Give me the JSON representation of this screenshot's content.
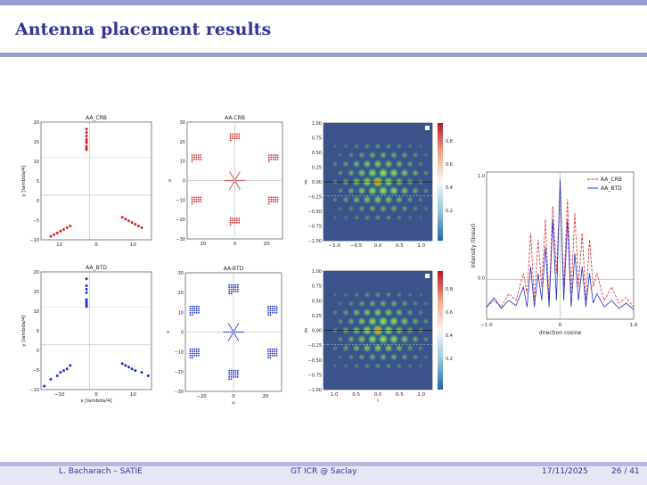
{
  "slide": {
    "title": "Antenna placement results"
  },
  "footer": {
    "author": "L. Bacharach – SATIE",
    "event": "GT ICR @ Saclay",
    "date": "17/11/2025",
    "page": "26 / 41"
  },
  "colors": {
    "accent": "#33339a",
    "crb": "#d62728",
    "btd": "#1f33c8"
  },
  "chart_data": [
    {
      "type": "scatter",
      "title": "AA_CRB",
      "ylabel": "y [lambda/4]",
      "xticks": [
        "10",
        "0",
        "10"
      ],
      "yticks": [
        "20",
        "15",
        "10",
        "5",
        "0",
        "−5",
        "−10"
      ],
      "series": [
        {
          "name": "AA_CRB",
          "x": [
            -1,
            -1,
            -1,
            -1,
            -1,
            -1,
            -1,
            -1,
            -1,
            -12,
            -11,
            -10,
            -9,
            -8,
            -7,
            -6,
            10,
            11,
            12,
            13,
            14,
            15,
            16
          ],
          "y": [
            20,
            19,
            18,
            17,
            16.5,
            16,
            15,
            14.5,
            14,
            -11,
            -10.5,
            -10,
            -9.5,
            -9,
            -8.5,
            -8,
            -5.5,
            -6,
            -6.5,
            -7,
            -7.5,
            -8,
            -8.5
          ]
        }
      ]
    },
    {
      "type": "scatter",
      "title": "AA-CRB",
      "ylabel": "v",
      "xticks": [
        "20",
        "0",
        "20"
      ],
      "yticks": [
        "30",
        "20",
        "10",
        "0",
        "−10",
        "−20",
        "−30"
      ]
    },
    {
      "type": "heatmap",
      "xlabel": "",
      "ylabel": "m",
      "xticks": [
        "−1.0",
        "−0.5",
        "0.0",
        "0.5",
        "1.0"
      ],
      "yticks": [
        "1.00",
        "0.75",
        "0.50",
        "0.25",
        "0.00",
        "−0.25",
        "−0.50",
        "−0.75",
        "−1.00"
      ],
      "colorbar_ticks": [
        "0.8",
        "0.6",
        "0.4",
        "0.2"
      ]
    },
    {
      "type": "line",
      "xlabel": "direction cosine",
      "ylabel": "intensity (linear)",
      "xticks": [
        "−1.0",
        "0",
        "1.0"
      ],
      "yticks": [
        "1.0",
        "0.0"
      ],
      "series": [
        {
          "name": "AA_CRB",
          "x": [
            -1.0,
            -0.9,
            -0.8,
            -0.7,
            -0.6,
            -0.5,
            -0.45,
            -0.4,
            -0.35,
            -0.3,
            -0.25,
            -0.2,
            -0.15,
            -0.1,
            -0.05,
            0.0,
            0.05,
            0.1,
            0.15,
            0.2,
            0.25,
            0.3,
            0.35,
            0.4,
            0.45,
            0.5,
            0.6,
            0.7,
            0.8,
            0.9,
            1.0
          ],
          "y": [
            0.05,
            0.1,
            0.05,
            0.15,
            0.1,
            0.3,
            0.15,
            0.6,
            0.1,
            0.55,
            0.2,
            0.7,
            0.1,
            0.8,
            0.3,
            0.95,
            0.2,
            0.85,
            0.15,
            0.75,
            0.2,
            0.6,
            0.1,
            0.55,
            0.2,
            0.3,
            0.1,
            0.2,
            0.08,
            0.12,
            0.05
          ]
        },
        {
          "name": "AA_BTD",
          "x": [
            -1.0,
            -0.9,
            -0.8,
            -0.7,
            -0.6,
            -0.5,
            -0.45,
            -0.4,
            -0.35,
            -0.3,
            -0.25,
            -0.2,
            -0.15,
            -0.1,
            -0.05,
            0.0,
            0.05,
            0.1,
            0.15,
            0.2,
            0.25,
            0.3,
            0.35,
            0.4,
            0.45,
            0.5,
            0.6,
            0.7,
            0.8,
            0.9,
            1.0
          ],
          "y": [
            0.05,
            0.12,
            0.04,
            0.1,
            0.06,
            0.2,
            0.05,
            0.35,
            0.05,
            0.3,
            0.1,
            0.5,
            0.05,
            0.7,
            0.1,
            1.0,
            0.1,
            0.7,
            0.05,
            0.45,
            0.1,
            0.35,
            0.05,
            0.3,
            0.08,
            0.15,
            0.05,
            0.1,
            0.04,
            0.08,
            0.03
          ]
        }
      ]
    },
    {
      "type": "scatter",
      "title": "AA_BTD",
      "xlabel": "x [lambda/4]",
      "ylabel": "y [lambda/4]",
      "xticks": [
        "−10",
        "0",
        "10"
      ],
      "yticks": [
        "20",
        "15",
        "10",
        "5",
        "0",
        "−5",
        "−10"
      ],
      "series": [
        {
          "name": "AA_BTD",
          "x": [
            -1,
            -1,
            -1,
            -1,
            -1,
            -1,
            -1,
            -1,
            -1,
            -14,
            -12,
            -10,
            -9,
            -8,
            -7,
            -6,
            10,
            11,
            12,
            13,
            14,
            16,
            18
          ],
          "y": [
            20,
            18,
            17,
            16,
            14,
            13.5,
            13,
            12.5,
            12,
            -11,
            -9,
            -8,
            -7,
            -6.5,
            -6,
            -5,
            -4.5,
            -5,
            -5.5,
            -6,
            -6.5,
            -7,
            -8
          ]
        }
      ]
    },
    {
      "type": "scatter",
      "title": "AA-BTD",
      "xlabel": "u",
      "ylabel": "v",
      "xticks": [
        "−20",
        "0",
        "20"
      ],
      "yticks": [
        "30",
        "20",
        "10",
        "0",
        "−10",
        "−20",
        "−30"
      ]
    },
    {
      "type": "heatmap",
      "xlabel": "l",
      "ylabel": "m",
      "xticks": [
        "1.0",
        "0.5",
        "0.0",
        "0.5",
        "1.0"
      ],
      "yticks": [
        "1.00",
        "0.75",
        "0.50",
        "0.25",
        "0.00",
        "−0.25",
        "−0.50",
        "−0.75",
        "−1.00"
      ],
      "colorbar_ticks": [
        "0.8",
        "0.6",
        "0.4",
        "0.2"
      ]
    }
  ]
}
